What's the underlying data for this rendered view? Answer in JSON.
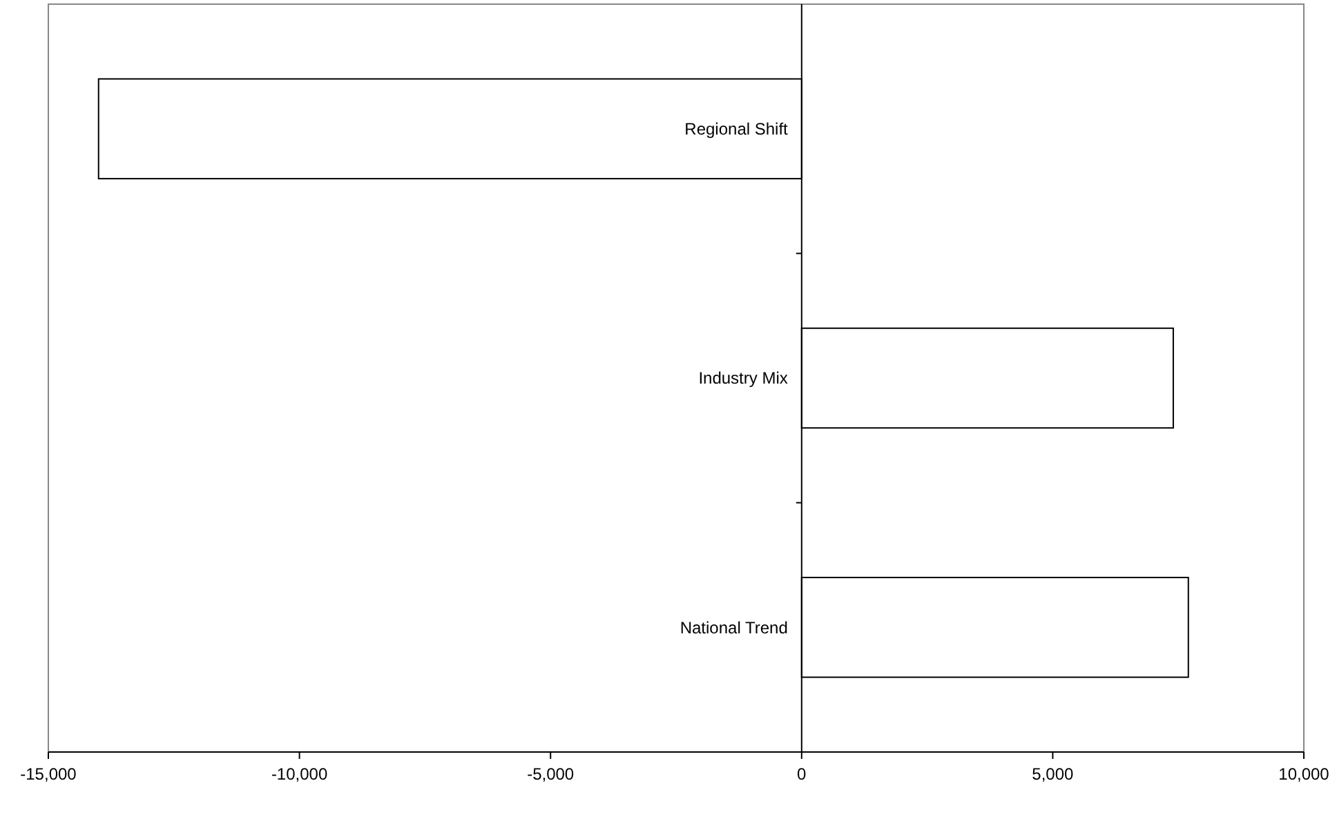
{
  "chart_data": {
    "type": "bar",
    "orientation": "horizontal",
    "categories": [
      "Regional Shift",
      "Industry Mix",
      "National Trend"
    ],
    "values": [
      -14000,
      7400,
      7700
    ],
    "color": "#ffffff",
    "xlim": [
      -15000,
      10000
    ],
    "xticks": [
      {
        "value": -15000,
        "label": "-15,000"
      },
      {
        "value": -10000,
        "label": "-10,000"
      },
      {
        "value": -5000,
        "label": "-5,000"
      },
      0,
      {
        "value": 5000,
        "label": "5,000"
      },
      {
        "value": 10000,
        "label": "10,000"
      }
    ],
    "grid": false
  }
}
